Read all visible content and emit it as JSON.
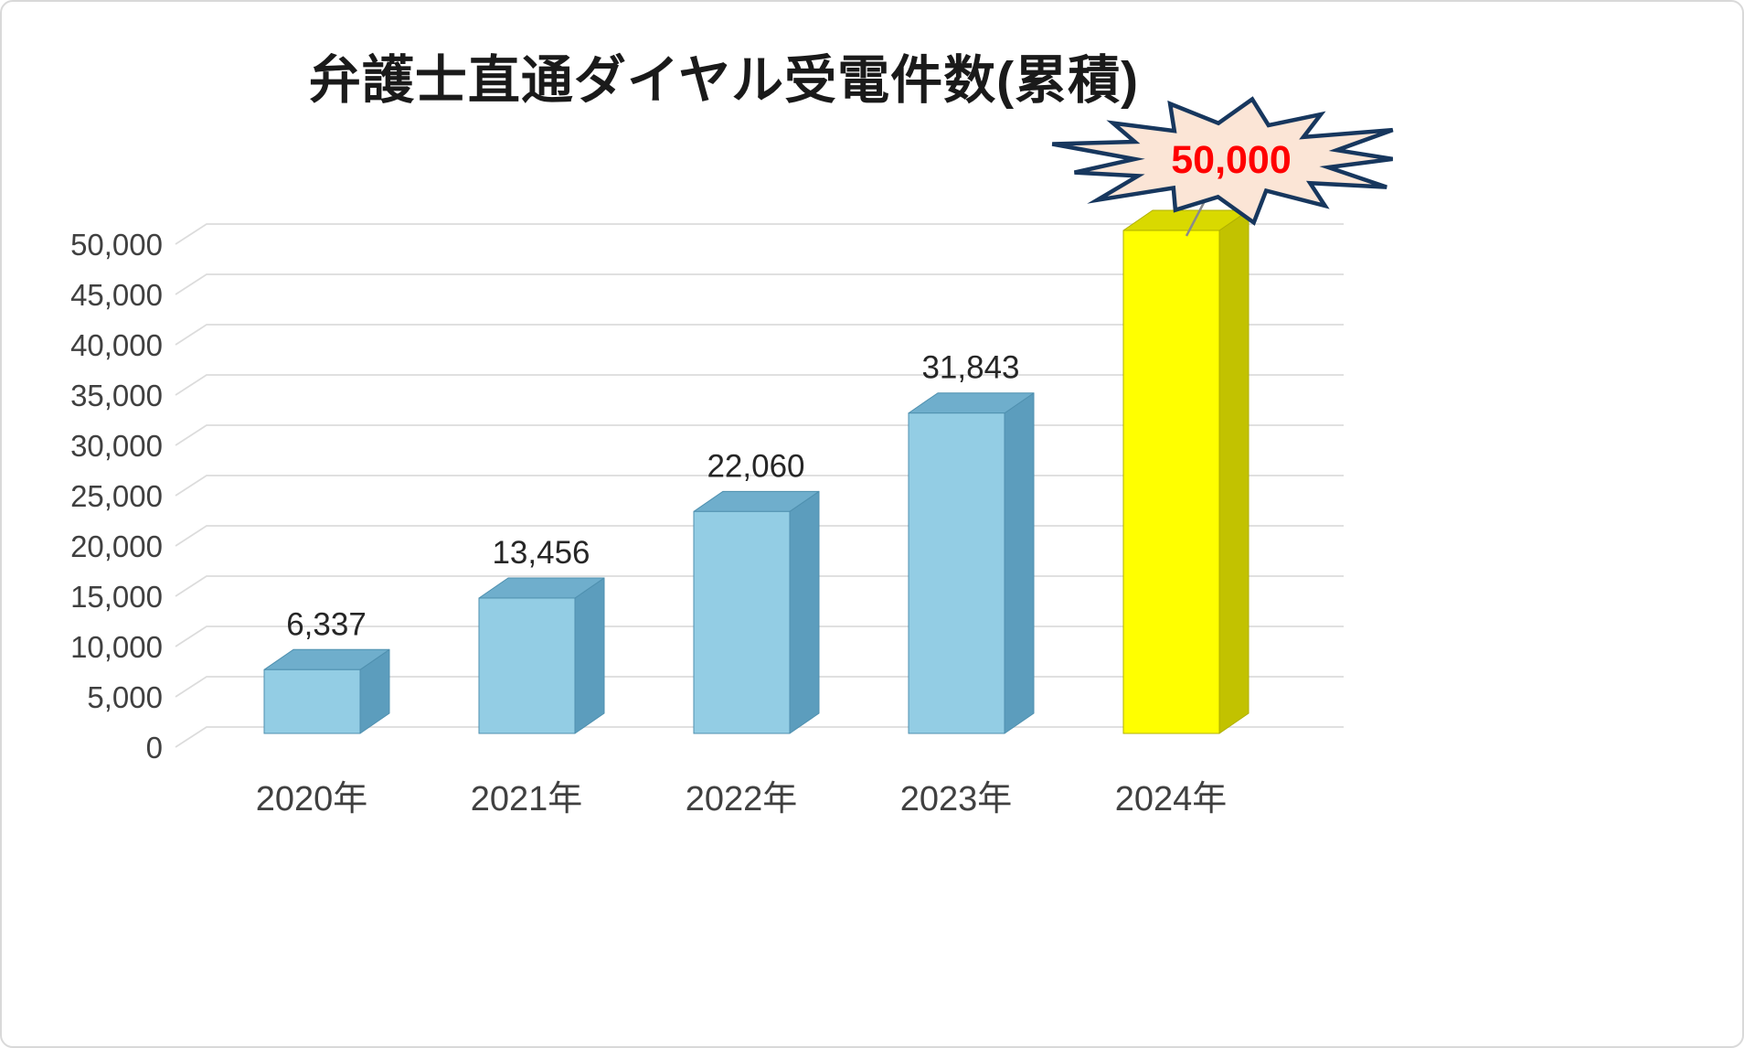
{
  "frame": {
    "background": "#FFFFFF",
    "border_color": "#D9D9D9"
  },
  "chart_data": {
    "type": "bar",
    "style": "3d",
    "title": "弁護士直通ダイヤル受電件数(累積)",
    "categories": [
      "2020年",
      "2021年",
      "2022年",
      "2023年",
      "2024年"
    ],
    "values": [
      6337,
      13456,
      22060,
      31843,
      50000
    ],
    "value_labels": [
      "6,337",
      "13,456",
      "22,060",
      "31,843",
      "50,000"
    ],
    "ylim": [
      0,
      50000
    ],
    "ytick_step": 5000,
    "ytick_labels": [
      "0",
      "5,000",
      "10,000",
      "15,000",
      "20,000",
      "25,000",
      "30,000",
      "35,000",
      "40,000",
      "45,000",
      "50,000"
    ],
    "grid": true,
    "grid_color": "#DCDCDC",
    "axis_label_color": "#404040",
    "value_label_color": "#262626",
    "legend": "none",
    "highlight_index": 4,
    "bar_color_default": {
      "front": "#93CDE4",
      "top": "#6FAECC",
      "side": "#5C9DBD",
      "edge": "#4F90AF"
    },
    "bar_color_highlight": {
      "front": "#FFFF00",
      "top": "#D9D900",
      "side": "#C2C200",
      "edge": "#B0B000"
    },
    "callout": {
      "text": "50,000",
      "index": 4,
      "shape": "explosion",
      "fill": "#FBE5D6",
      "border": "#17375E",
      "text_color": "#FF0000"
    }
  }
}
